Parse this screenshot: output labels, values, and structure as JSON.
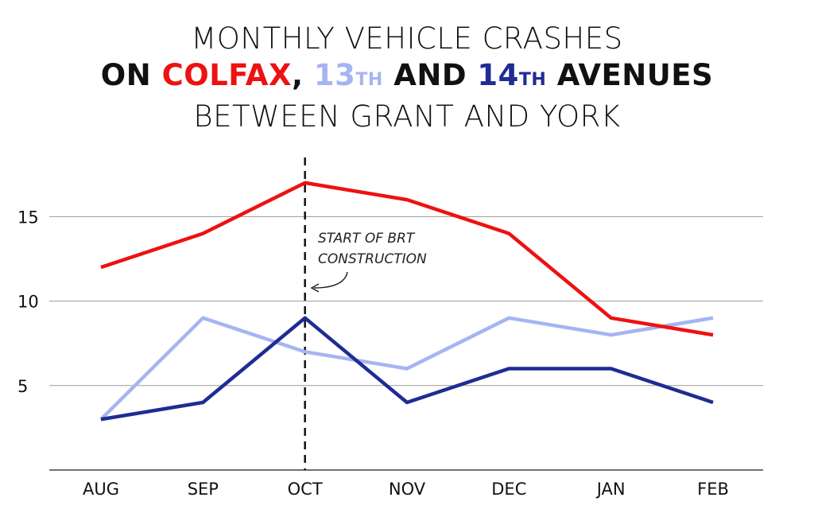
{
  "title": {
    "line1": "MONTHLY VEHICLE CRASHES",
    "line2_prefix": "ON ",
    "colfax": "COLFAX",
    "comma": ", ",
    "thirteenth": "13",
    "thirteenth_suffix": "TH",
    "and": " AND ",
    "fourteenth": "14",
    "fourteenth_suffix": "TH",
    "avenues": " AVENUES",
    "line3": "BETWEEN GRANT AND YORK"
  },
  "colors": {
    "colfax": "#ee1111",
    "thirteenth": "#a6b4f2",
    "fourteenth": "#1e2c94",
    "grid": "#9a9a9a",
    "axis": "#444444",
    "marker": "#111111"
  },
  "annotation": {
    "line1": "START OF BRT",
    "line2": "CONSTRUCTION",
    "x": "OCT"
  },
  "chart_data": {
    "type": "line",
    "title": "MONTHLY VEHICLE CRASHES ON COLFAX, 13TH AND 14TH AVENUES BETWEEN GRANT AND YORK",
    "categories": [
      "AUG",
      "SEP",
      "OCT",
      "NOV",
      "DEC",
      "JAN",
      "FEB"
    ],
    "series": [
      {
        "name": "COLFAX",
        "color": "#ee1111",
        "values": [
          12,
          14,
          17,
          16,
          14,
          9,
          8
        ]
      },
      {
        "name": "13TH",
        "color": "#a6b4f2",
        "values": [
          3,
          9,
          7,
          6,
          9,
          8,
          9
        ]
      },
      {
        "name": "14TH",
        "color": "#1e2c94",
        "values": [
          3,
          4,
          9,
          4,
          6,
          6,
          4
        ]
      }
    ],
    "yticks": [
      5,
      10,
      15
    ],
    "ylim": [
      0,
      18.5
    ],
    "grid": true,
    "xlabel": "",
    "ylabel": ""
  }
}
